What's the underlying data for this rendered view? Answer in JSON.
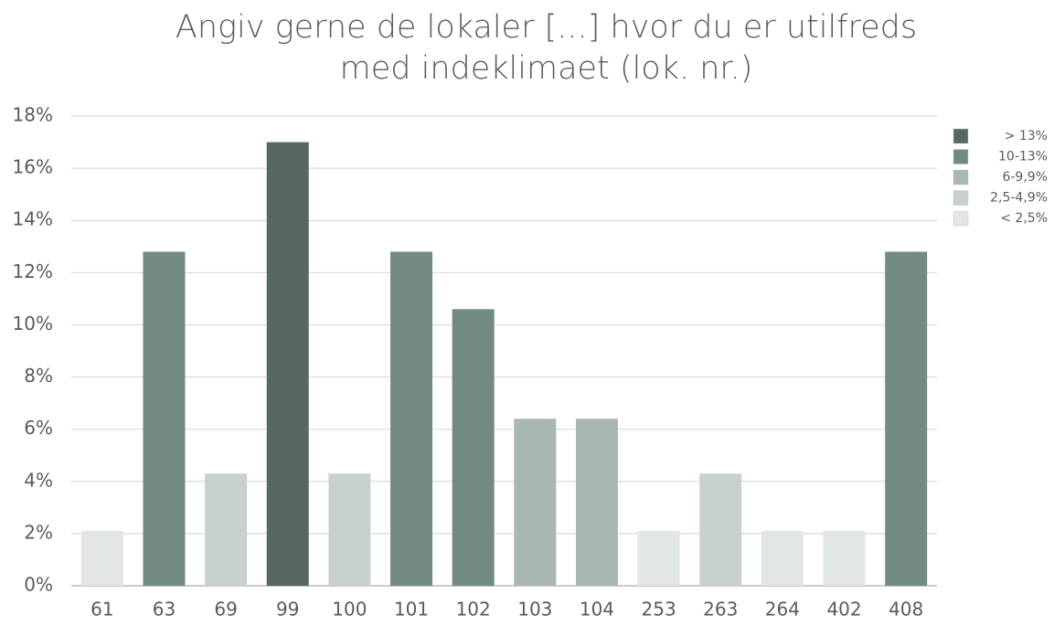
{
  "chart_data": {
    "type": "bar",
    "title": "Angiv gerne de lokaler [...] hvor du er utilfreds med indeklimaet (lok. nr.)",
    "categories": [
      "61",
      "63",
      "69",
      "99",
      "100",
      "101",
      "102",
      "103",
      "104",
      "253",
      "263",
      "264",
      "402",
      "408"
    ],
    "series": [
      {
        "name": "> 13%",
        "color": "#56685f",
        "values": [
          null,
          null,
          null,
          17.0,
          null,
          null,
          null,
          null,
          null,
          null,
          null,
          null,
          null,
          null
        ]
      },
      {
        "name": "10-13%",
        "color": "#728a80",
        "values": [
          null,
          12.8,
          null,
          null,
          null,
          12.8,
          10.6,
          null,
          null,
          null,
          null,
          null,
          null,
          12.8
        ]
      },
      {
        "name": "6-9,9%",
        "color": "#a9b7b1",
        "values": [
          null,
          null,
          null,
          null,
          null,
          null,
          null,
          6.4,
          6.4,
          null,
          null,
          null,
          null,
          null
        ]
      },
      {
        "name": "2,5-4,9%",
        "color": "#c8d1ce",
        "values": [
          null,
          null,
          4.3,
          null,
          4.3,
          null,
          null,
          null,
          null,
          null,
          4.3,
          null,
          null,
          null
        ]
      },
      {
        "name": "< 2,5%",
        "color": "#e2e6e5",
        "values": [
          2.1,
          null,
          null,
          null,
          null,
          null,
          null,
          null,
          null,
          2.1,
          null,
          2.1,
          2.1,
          null
        ]
      }
    ],
    "ylim": [
      0,
      18
    ],
    "yticks": [
      {
        "value": 0,
        "label": "0%"
      },
      {
        "value": 2,
        "label": "2%"
      },
      {
        "value": 4,
        "label": "4%"
      },
      {
        "value": 6,
        "label": "6%"
      },
      {
        "value": 8,
        "label": "8%"
      },
      {
        "value": 10,
        "label": "10%"
      },
      {
        "value": 12,
        "label": "12%"
      },
      {
        "value": 14,
        "label": "14%"
      },
      {
        "value": 16,
        "label": "16%"
      },
      {
        "value": 18,
        "label": "18%"
      }
    ],
    "grid": true,
    "legend": "right"
  }
}
